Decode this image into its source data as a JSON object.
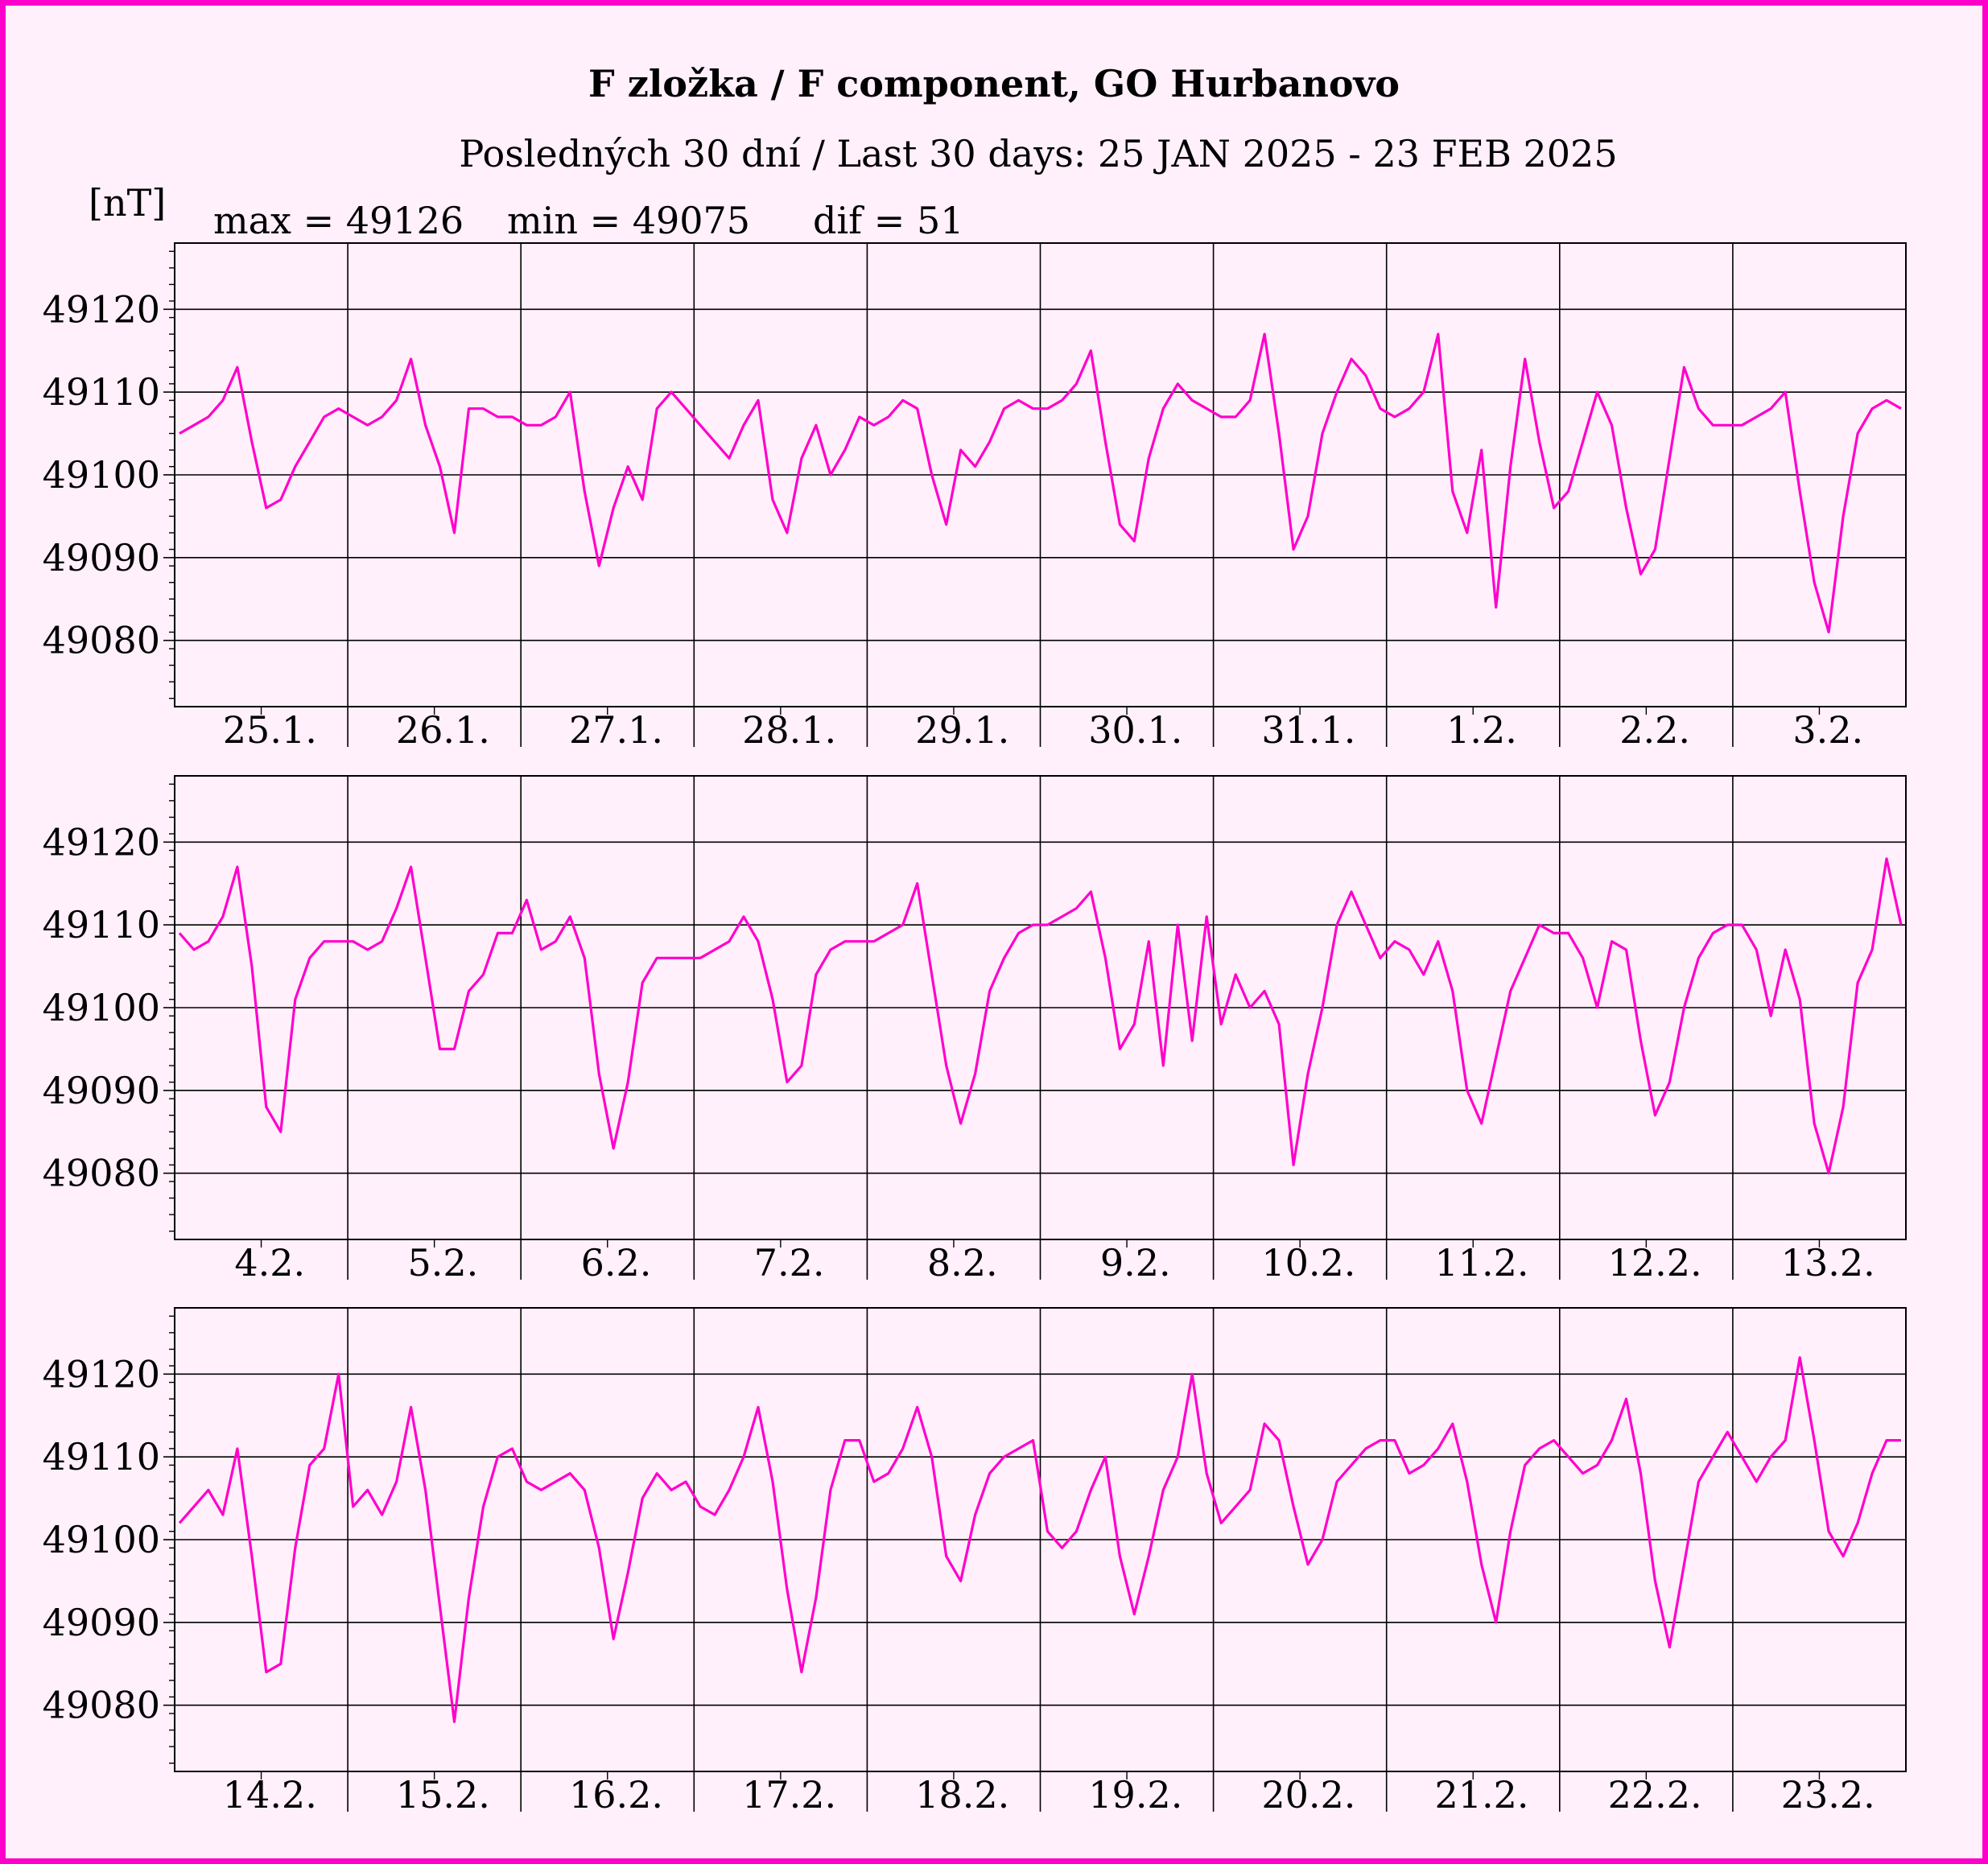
{
  "chart_data": {
    "type": "line",
    "title": "F zložka / F component, GO Hurbanovo",
    "subtitle": "Posledných 30 dní / Last 30 days: 25 JAN 2025 - 23 FEB 2025",
    "ylabel": "[nT]",
    "stats": {
      "max_label": "max = 49126",
      "min_label": "min = 49075",
      "dif_label": "dif = 51"
    },
    "ylim": [
      49072,
      49128
    ],
    "yticks": [
      "49120",
      "49110",
      "49100",
      "49090",
      "49080"
    ],
    "ytick_values": [
      49120,
      49110,
      49100,
      49090,
      49080
    ],
    "grid": true,
    "line_color": "#ff00cc",
    "panels": [
      {
        "days": [
          "25.1.",
          "26.1.",
          "27.1.",
          "28.1.",
          "29.1.",
          "30.1.",
          "31.1.",
          "1.2.",
          "2.2.",
          "3.2."
        ],
        "points_per_day": 12,
        "values": [
          49105,
          49106,
          49107,
          49109,
          49113,
          49104,
          49096,
          49097,
          49101,
          49104,
          49107,
          49108,
          49107,
          49106,
          49107,
          49109,
          49114,
          49106,
          49101,
          49093,
          49108,
          49108,
          49107,
          49107,
          49106,
          49106,
          49107,
          49110,
          49098,
          49089,
          49096,
          49101,
          49097,
          49108,
          49110,
          49108,
          49106,
          49104,
          49102,
          49106,
          49109,
          49097,
          49093,
          49102,
          49106,
          49100,
          49103,
          49107,
          49106,
          49107,
          49109,
          49108,
          49100,
          49094,
          49103,
          49101,
          49104,
          49108,
          49109,
          49108,
          49108,
          49109,
          49111,
          49115,
          49104,
          49094,
          49092,
          49102,
          49108,
          49111,
          49109,
          49108,
          49107,
          49107,
          49109,
          49117,
          49105,
          49091,
          49095,
          49105,
          49110,
          49114,
          49112,
          49108,
          49107,
          49108,
          49110,
          49117,
          49098,
          49093,
          49103,
          49084,
          49101,
          49114,
          49104,
          49096,
          49098,
          49104,
          49110,
          49106,
          49096,
          49088,
          49091,
          49102,
          49113,
          49108,
          49106,
          49106,
          49106,
          49107,
          49108,
          49110,
          49098,
          49087,
          49081,
          49095,
          49105,
          49108,
          49109,
          49108
        ]
      },
      {
        "days": [
          "4.2.",
          "5.2.",
          "6.2.",
          "7.2.",
          "8.2.",
          "9.2.",
          "10.2.",
          "11.2.",
          "12.2.",
          "13.2."
        ],
        "points_per_day": 12,
        "values": [
          49109,
          49107,
          49108,
          49111,
          49117,
          49105,
          49088,
          49085,
          49101,
          49106,
          49108,
          49108,
          49108,
          49107,
          49108,
          49112,
          49117,
          49106,
          49095,
          49095,
          49102,
          49104,
          49109,
          49109,
          49113,
          49107,
          49108,
          49111,
          49106,
          49092,
          49083,
          49091,
          49103,
          49106,
          49106,
          49106,
          49106,
          49107,
          49108,
          49111,
          49108,
          49101,
          49091,
          49093,
          49104,
          49107,
          49108,
          49108,
          49108,
          49109,
          49110,
          49115,
          49104,
          49093,
          49086,
          49092,
          49102,
          49106,
          49109,
          49110,
          49110,
          49111,
          49112,
          49114,
          49106,
          49095,
          49098,
          49108,
          49093,
          49110,
          49096,
          49111,
          49098,
          49104,
          49100,
          49102,
          49098,
          49081,
          49092,
          49100,
          49110,
          49114,
          49110,
          49106,
          49108,
          49107,
          49104,
          49108,
          49102,
          49090,
          49086,
          49094,
          49102,
          49106,
          49110,
          49109,
          49109,
          49106,
          49100,
          49108,
          49107,
          49096,
          49087,
          49091,
          49100,
          49106,
          49109,
          49110,
          49110,
          49107,
          49099,
          49107,
          49101,
          49086,
          49080,
          49088,
          49103,
          49107,
          49118,
          49110
        ]
      },
      {
        "days": [
          "14.2.",
          "15.2.",
          "16.2.",
          "17.2.",
          "18.2.",
          "19.2.",
          "20.2.",
          "21.2.",
          "22.2.",
          "23.2."
        ],
        "points_per_day": 12,
        "values": [
          49102,
          49104,
          49106,
          49103,
          49111,
          49098,
          49084,
          49085,
          49099,
          49109,
          49111,
          49120,
          49104,
          49106,
          49103,
          49107,
          49116,
          49106,
          49092,
          49078,
          49093,
          49104,
          49110,
          49111,
          49107,
          49106,
          49107,
          49108,
          49106,
          49099,
          49088,
          49096,
          49105,
          49108,
          49106,
          49107,
          49104,
          49103,
          49106,
          49110,
          49116,
          49107,
          49094,
          49084,
          49093,
          49106,
          49112,
          49112,
          49107,
          49108,
          49111,
          49116,
          49110,
          49098,
          49095,
          49103,
          49108,
          49110,
          49111,
          49112,
          49101,
          49099,
          49101,
          49106,
          49110,
          49098,
          49091,
          49098,
          49106,
          49110,
          49120,
          49108,
          49102,
          49104,
          49106,
          49114,
          49112,
          49104,
          49097,
          49100,
          49107,
          49109,
          49111,
          49112,
          49112,
          49108,
          49109,
          49111,
          49114,
          49107,
          49097,
          49090,
          49101,
          49109,
          49111,
          49112,
          49110,
          49108,
          49109,
          49112,
          49117,
          49108,
          49095,
          49087,
          49097,
          49107,
          49110,
          49113,
          49110,
          49107,
          49110,
          49112,
          49122,
          49112,
          49101,
          49098,
          49102,
          49108,
          49112,
          49112
        ]
      }
    ]
  }
}
